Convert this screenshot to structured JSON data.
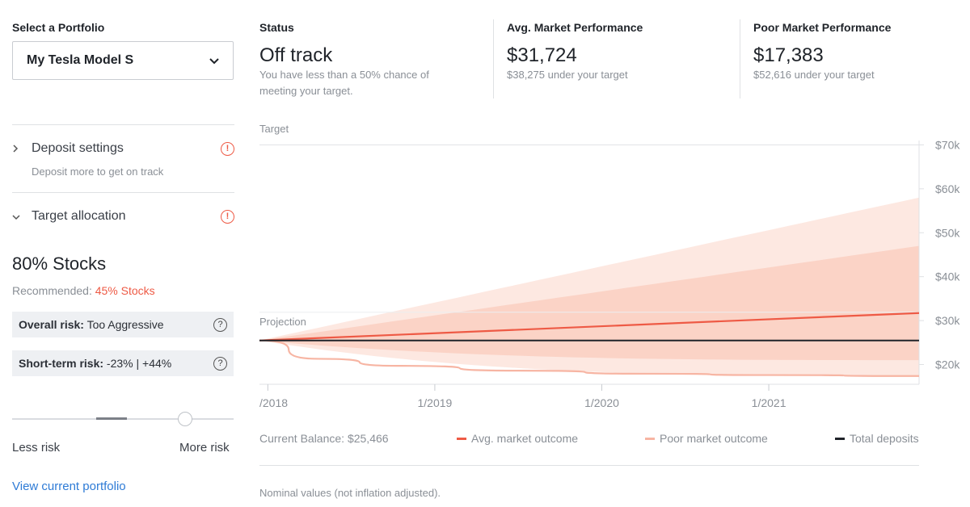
{
  "portfolio": {
    "heading": "Select a Portfolio",
    "selected": "My Tesla Model S"
  },
  "deposit_settings": {
    "title": "Deposit settings",
    "subtitle": "Deposit more to get on track",
    "alert": "!"
  },
  "target_allocation": {
    "title": "Target allocation",
    "alert": "!",
    "stocks": "80% Stocks",
    "recommended_label": "Recommended:",
    "recommended_value": "45% Stocks"
  },
  "risk": {
    "overall_label": "Overall risk:",
    "overall_value": "Too Aggressive",
    "short_label": "Short-term risk:",
    "short_value": "-23% | +44%",
    "help": "?",
    "less": "Less risk",
    "more": "More risk",
    "slider_level": 0.78
  },
  "view_link": "View current portfolio",
  "status": {
    "heading": "Status",
    "value": "Off track",
    "description": "You have less than a 50% chance of meeting your target."
  },
  "avg_market": {
    "heading": "Avg. Market Performance",
    "value": "$31,724",
    "note": "$38,275 under your target"
  },
  "poor_market": {
    "heading": "Poor Market Performance",
    "value": "$17,383",
    "note": "$52,616 under your target"
  },
  "chart_data": {
    "type": "area",
    "target_label": "Target",
    "projection_label": "Projection",
    "y_ticks": [
      "$70k",
      "$60k",
      "$50k",
      "$40k",
      "$30k",
      "$20k"
    ],
    "y_tick_values": [
      70000,
      60000,
      50000,
      40000,
      30000,
      20000
    ],
    "x_ticks": [
      "/2018",
      "1/2019",
      "1/2020",
      "1/2021"
    ],
    "x_range": [
      2017.95,
      2021.9
    ],
    "x_tick_values": [
      2018.0,
      2019.0,
      2020.0,
      2021.0
    ],
    "ylim": [
      15500,
      71000
    ],
    "target_value": 70000,
    "series": [
      {
        "name": "Avg. market outcome",
        "color": "#ee5a45",
        "x": [
          2017.95,
          2021.9
        ],
        "values": [
          25466,
          31724
        ]
      },
      {
        "name": "Poor market outcome",
        "color": "#f7b5a3",
        "x": [
          2017.95,
          2018.3,
          2018.8,
          2019.5,
          2020.3,
          2021.0,
          2021.9
        ],
        "values": [
          25466,
          21300,
          19700,
          18600,
          17900,
          17600,
          17383
        ]
      },
      {
        "name": "Total deposits",
        "color": "#1f2329",
        "x": [
          2017.95,
          2021.9
        ],
        "values": [
          25466,
          25466
        ]
      }
    ],
    "bands": [
      {
        "upper_end": 58000,
        "lower_end": 17383,
        "color": "#fde8e1"
      },
      {
        "upper_end": 47000,
        "lower_end": 21000,
        "color": "#fbd3c6"
      }
    ],
    "current_balance": "Current Balance: $25,466",
    "footnote": "Nominal values (not inflation adjusted)."
  },
  "colors": {
    "accent_red": "#ee5a45",
    "link_blue": "#2e7bd6"
  }
}
